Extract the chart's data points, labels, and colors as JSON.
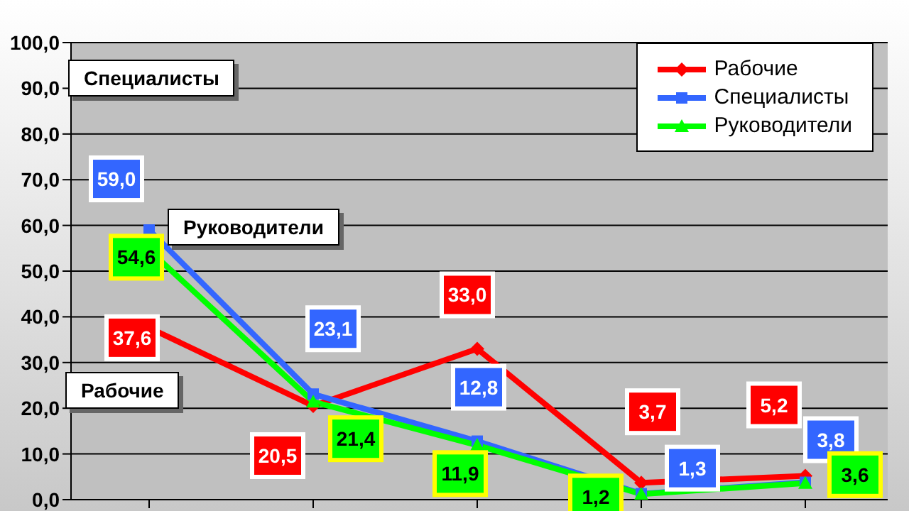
{
  "chart_data": {
    "type": "line",
    "categories": [
      null,
      null,
      null,
      null,
      null
    ],
    "series": [
      {
        "name": "Рабочие",
        "color": "#ff0000",
        "marker": "diamond",
        "values": [
          37.6,
          20.5,
          33.0,
          3.7,
          5.2
        ],
        "value_labels": [
          "37,6",
          "20,5",
          "33,0",
          "3,7",
          "5,2"
        ]
      },
      {
        "name": "Специалисты",
        "color": "#3366ff",
        "marker": "square",
        "values": [
          59.0,
          23.1,
          12.8,
          1.3,
          3.8
        ],
        "value_labels": [
          "59,0",
          "23,1",
          "12,8",
          "1,3",
          "3,8"
        ]
      },
      {
        "name": "Руководители",
        "color": "#00ff00",
        "marker": "triangle",
        "values": [
          54.6,
          21.4,
          11.9,
          1.2,
          3.6
        ],
        "value_labels": [
          "54,6",
          "21,4",
          "11,9",
          "1,2",
          "3,6"
        ]
      }
    ],
    "ylim": [
      0,
      100
    ],
    "yticks": [
      {
        "value": 0,
        "label": "0,0"
      },
      {
        "value": 10,
        "label": "10,0"
      },
      {
        "value": 20,
        "label": "20,0"
      },
      {
        "value": 30,
        "label": "30,0"
      },
      {
        "value": 40,
        "label": "40,0"
      },
      {
        "value": 50,
        "label": "50,0"
      },
      {
        "value": 60,
        "label": "60,0"
      },
      {
        "value": 70,
        "label": "70,0"
      },
      {
        "value": 80,
        "label": "80,0"
      },
      {
        "value": 90,
        "label": "90,0"
      },
      {
        "value": 100,
        "label": "100,0"
      }
    ],
    "grid": "y",
    "legend": "top right",
    "line_style": "solid",
    "annotations": [
      "Специалисты",
      "Руководители",
      "Рабочие"
    ]
  }
}
